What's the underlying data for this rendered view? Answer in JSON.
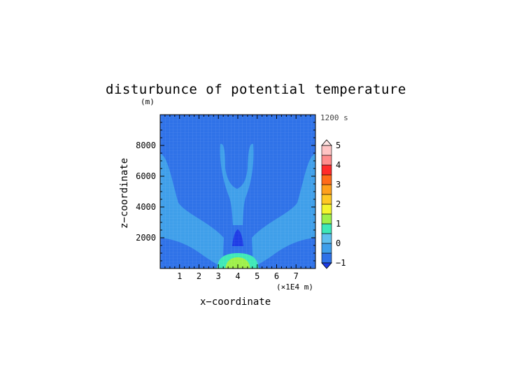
{
  "chart_data": {
    "type": "heatmap",
    "title": "disturbunce of potential temperature",
    "xlabel": "x−coordinate",
    "ylabel": "z−coordinate",
    "y_unit": "(m)",
    "x_unit": "(×1E4 m)",
    "time_label": "1200 s",
    "xlim": [
      0,
      8
    ],
    "ylim": [
      0,
      10000
    ],
    "x_ticks": [
      "1",
      "2",
      "3",
      "4",
      "5",
      "6",
      "7"
    ],
    "x_tick_values": [
      1,
      2,
      3,
      4,
      5,
      6,
      7
    ],
    "y_ticks": [
      "2000",
      "4000",
      "6000",
      "8000"
    ],
    "y_tick_values": [
      2000,
      4000,
      6000,
      8000
    ],
    "colorbar": {
      "ticks": [
        "5",
        "4",
        "3",
        "2",
        "1",
        "0",
        "−1"
      ],
      "tick_values": [
        5,
        4,
        3,
        2,
        1,
        0,
        -1
      ],
      "levels": [
        -1,
        -0.5,
        0,
        0.5,
        1,
        1.5,
        2,
        2.5,
        3,
        3.5,
        4,
        4.5,
        5
      ],
      "colors": [
        "#1e3ce6",
        "#2f72e8",
        "#3f9fea",
        "#5fbfee",
        "#3ee8b8",
        "#9ef04a",
        "#f4f52e",
        "#ffc824",
        "#ffa01c",
        "#ff6a1a",
        "#ff2a2a",
        "#ff8c8c",
        "#ffc4c4"
      ]
    },
    "regions": [
      {
        "name": "background",
        "level": -0.3
      },
      {
        "name": "side-plumes",
        "level": 0.2
      },
      {
        "name": "central-cold-core",
        "level": -0.7
      },
      {
        "name": "central-warm-bubble",
        "level": 1.2
      },
      {
        "name": "warm-bubble-core",
        "level": 1.8
      }
    ]
  }
}
